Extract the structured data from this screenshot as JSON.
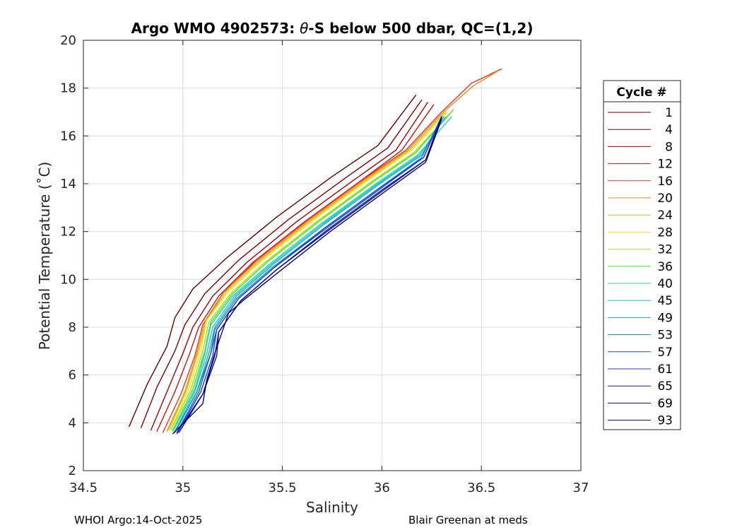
{
  "chart_data": {
    "type": "line",
    "title_prefix": "Argo WMO 4902573: ",
    "title_symbol": "θ",
    "title_suffix": "-S below 500 dbar,  QC=(1,2)",
    "xlabel": "Salinity",
    "ylabel": "Potential Temperature (˚C)",
    "xlim": [
      34.5,
      37
    ],
    "ylim": [
      2,
      20
    ],
    "xticks": [
      "34.5",
      "35",
      "35.5",
      "36",
      "36.5",
      "37"
    ],
    "yticks": [
      "2",
      "4",
      "6",
      "8",
      "10",
      "12",
      "14",
      "16",
      "18",
      "20"
    ],
    "grid": true,
    "legend_title": "Cycle #",
    "legend_position": "outside-right",
    "series": [
      {
        "name": "1",
        "color": "#5c0000",
        "points": [
          [
            34.73,
            3.85
          ],
          [
            34.82,
            5.6
          ],
          [
            34.92,
            7.2
          ],
          [
            34.96,
            8.4
          ],
          [
            35.05,
            9.6
          ],
          [
            35.22,
            10.9
          ],
          [
            35.47,
            12.6
          ],
          [
            35.75,
            14.3
          ],
          [
            35.98,
            15.6
          ],
          [
            36.17,
            17.7
          ]
        ]
      },
      {
        "name": "4",
        "color": "#800000",
        "points": [
          [
            34.79,
            3.8
          ],
          [
            34.87,
            5.5
          ],
          [
            34.96,
            7.0
          ],
          [
            35.01,
            8.1
          ],
          [
            35.11,
            9.4
          ],
          [
            35.28,
            10.8
          ],
          [
            35.53,
            12.5
          ],
          [
            35.81,
            14.2
          ],
          [
            36.03,
            15.5
          ],
          [
            36.2,
            17.5
          ]
        ]
      },
      {
        "name": "8",
        "color": "#a00000",
        "points": [
          [
            34.84,
            3.7
          ],
          [
            34.92,
            5.3
          ],
          [
            35.0,
            6.9
          ],
          [
            35.05,
            8.0
          ],
          [
            35.15,
            9.3
          ],
          [
            35.32,
            10.7
          ],
          [
            35.57,
            12.4
          ],
          [
            35.85,
            14.1
          ],
          [
            36.07,
            15.4
          ],
          [
            36.23,
            17.4
          ]
        ]
      },
      {
        "name": "12",
        "color": "#c41414",
        "points": [
          [
            34.87,
            3.65
          ],
          [
            34.96,
            5.3
          ],
          [
            35.03,
            6.8
          ],
          [
            35.08,
            8.0
          ],
          [
            35.18,
            9.3
          ],
          [
            35.35,
            10.7
          ],
          [
            35.61,
            12.4
          ],
          [
            35.89,
            14.1
          ],
          [
            36.1,
            15.4
          ],
          [
            36.26,
            17.3
          ]
        ]
      },
      {
        "name": "16",
        "color": "#e03a1a",
        "points": [
          [
            34.9,
            3.6
          ],
          [
            34.99,
            5.2
          ],
          [
            35.06,
            6.8
          ],
          [
            35.1,
            8.1
          ],
          [
            35.2,
            9.4
          ],
          [
            35.37,
            10.8
          ],
          [
            35.63,
            12.5
          ],
          [
            35.91,
            14.2
          ],
          [
            36.12,
            15.4
          ],
          [
            36.3,
            17.0
          ],
          [
            36.45,
            18.2
          ],
          [
            36.6,
            18.8
          ]
        ]
      },
      {
        "name": "20",
        "color": "#e8891e",
        "points": [
          [
            34.92,
            3.65
          ],
          [
            35.01,
            5.3
          ],
          [
            35.07,
            6.9
          ],
          [
            35.11,
            8.2
          ],
          [
            35.21,
            9.5
          ],
          [
            35.38,
            10.8
          ],
          [
            35.64,
            12.5
          ],
          [
            35.92,
            14.2
          ],
          [
            36.13,
            15.4
          ],
          [
            36.31,
            17.0
          ],
          [
            36.46,
            18.1
          ],
          [
            36.58,
            18.7
          ]
        ]
      },
      {
        "name": "24",
        "color": "#d6c20f",
        "points": [
          [
            34.93,
            3.7
          ],
          [
            35.02,
            5.4
          ],
          [
            35.08,
            7.0
          ],
          [
            35.12,
            8.3
          ],
          [
            35.22,
            9.5
          ],
          [
            35.39,
            10.8
          ],
          [
            35.65,
            12.5
          ],
          [
            35.93,
            14.2
          ],
          [
            36.14,
            15.4
          ],
          [
            36.32,
            17.0
          ]
        ]
      },
      {
        "name": "28",
        "color": "#f0e60e",
        "points": [
          [
            34.94,
            3.75
          ],
          [
            35.03,
            5.4
          ],
          [
            35.09,
            7.0
          ],
          [
            35.12,
            8.3
          ],
          [
            35.23,
            9.5
          ],
          [
            35.4,
            10.8
          ],
          [
            35.66,
            12.5
          ],
          [
            35.94,
            14.2
          ],
          [
            36.15,
            15.4
          ],
          [
            36.33,
            17.0
          ]
        ]
      },
      {
        "name": "32",
        "color": "#a2e016",
        "points": [
          [
            34.94,
            3.7
          ],
          [
            35.04,
            5.4
          ],
          [
            35.1,
            7.0
          ],
          [
            35.13,
            8.2
          ],
          [
            35.24,
            9.4
          ],
          [
            35.41,
            10.7
          ],
          [
            35.67,
            12.4
          ],
          [
            35.95,
            14.1
          ],
          [
            36.16,
            15.3
          ],
          [
            36.34,
            16.9
          ]
        ]
      },
      {
        "name": "36",
        "color": "#3ee62a",
        "points": [
          [
            34.95,
            3.7
          ],
          [
            35.05,
            5.4
          ],
          [
            35.11,
            7.0
          ],
          [
            35.14,
            8.2
          ],
          [
            35.25,
            9.4
          ],
          [
            35.42,
            10.7
          ],
          [
            35.68,
            12.4
          ],
          [
            35.96,
            14.1
          ],
          [
            36.17,
            15.3
          ],
          [
            36.36,
            17.1
          ]
        ]
      },
      {
        "name": "40",
        "color": "#20d890",
        "points": [
          [
            34.95,
            3.65
          ],
          [
            35.06,
            5.4
          ],
          [
            35.11,
            6.9
          ],
          [
            35.14,
            8.1
          ],
          [
            35.25,
            9.3
          ],
          [
            35.43,
            10.6
          ],
          [
            35.69,
            12.3
          ],
          [
            35.97,
            14.0
          ],
          [
            36.18,
            15.2
          ],
          [
            36.35,
            16.8
          ]
        ]
      },
      {
        "name": "45",
        "color": "#19c4c4",
        "points": [
          [
            34.96,
            3.65
          ],
          [
            35.06,
            5.3
          ],
          [
            35.12,
            6.9
          ],
          [
            35.15,
            8.0
          ],
          [
            35.26,
            9.3
          ],
          [
            35.44,
            10.6
          ],
          [
            35.7,
            12.3
          ],
          [
            35.98,
            14.0
          ],
          [
            36.19,
            15.2
          ],
          [
            36.32,
            16.8
          ]
        ]
      },
      {
        "name": "49",
        "color": "#1aa8d8",
        "points": [
          [
            34.96,
            3.6
          ],
          [
            35.07,
            5.3
          ],
          [
            35.13,
            6.9
          ],
          [
            35.16,
            8.0
          ],
          [
            35.27,
            9.3
          ],
          [
            35.45,
            10.6
          ],
          [
            35.71,
            12.3
          ],
          [
            35.99,
            14.0
          ],
          [
            36.2,
            15.2
          ],
          [
            36.31,
            16.8
          ]
        ]
      },
      {
        "name": "53",
        "color": "#128ab3",
        "points": [
          [
            34.96,
            3.6
          ],
          [
            35.07,
            5.3
          ],
          [
            35.14,
            6.9
          ],
          [
            35.16,
            7.9
          ],
          [
            35.27,
            9.2
          ],
          [
            35.45,
            10.5
          ],
          [
            35.72,
            12.2
          ],
          [
            36.0,
            13.9
          ],
          [
            36.2,
            15.1
          ],
          [
            36.3,
            16.8
          ]
        ]
      },
      {
        "name": "57",
        "color": "#0f5fb0",
        "points": [
          [
            34.97,
            3.6
          ],
          [
            35.08,
            5.3
          ],
          [
            35.14,
            6.9
          ],
          [
            35.17,
            7.9
          ],
          [
            35.28,
            9.2
          ],
          [
            35.46,
            10.5
          ],
          [
            35.72,
            12.2
          ],
          [
            36.0,
            13.9
          ],
          [
            36.21,
            15.1
          ],
          [
            36.3,
            16.8
          ]
        ]
      },
      {
        "name": "61",
        "color": "#1a3ce0",
        "points": [
          [
            34.97,
            3.55
          ],
          [
            35.09,
            5.3
          ],
          [
            35.15,
            6.8
          ],
          [
            35.17,
            7.9
          ],
          [
            35.28,
            9.2
          ],
          [
            35.46,
            10.5
          ],
          [
            35.73,
            12.2
          ],
          [
            36.01,
            13.9
          ],
          [
            36.21,
            15.1
          ],
          [
            36.3,
            16.8
          ]
        ]
      },
      {
        "name": "65",
        "color": "#0c1ebc",
        "points": [
          [
            34.97,
            3.6
          ],
          [
            35.1,
            5.2
          ],
          [
            35.16,
            6.8
          ],
          [
            35.18,
            7.8
          ],
          [
            35.29,
            9.1
          ],
          [
            35.47,
            10.4
          ],
          [
            35.73,
            12.1
          ],
          [
            36.01,
            13.8
          ],
          [
            36.22,
            15.0
          ],
          [
            36.3,
            16.8
          ]
        ]
      },
      {
        "name": "69",
        "color": "#0a0a8c",
        "points": [
          [
            34.98,
            3.6
          ],
          [
            35.1,
            5.2
          ],
          [
            35.17,
            6.8
          ],
          [
            35.18,
            7.8
          ],
          [
            35.29,
            9.1
          ],
          [
            35.47,
            10.4
          ],
          [
            35.74,
            12.1
          ],
          [
            36.02,
            13.8
          ],
          [
            36.22,
            15.0
          ],
          [
            36.3,
            16.8
          ]
        ]
      },
      {
        "name": "93",
        "color": "#060650",
        "points": [
          [
            34.95,
            3.55
          ],
          [
            35.1,
            4.8
          ],
          [
            35.12,
            5.8
          ],
          [
            35.16,
            6.9
          ],
          [
            35.23,
            8.6
          ],
          [
            35.26,
            8.8
          ],
          [
            35.3,
            9.1
          ],
          [
            35.48,
            10.3
          ],
          [
            35.74,
            12.0
          ],
          [
            36.02,
            13.7
          ],
          [
            36.22,
            14.9
          ],
          [
            36.3,
            16.7
          ]
        ]
      }
    ]
  },
  "footer": {
    "left": "WHOI Argo:14-Oct-2025",
    "right": "Blair Greenan at meds"
  }
}
